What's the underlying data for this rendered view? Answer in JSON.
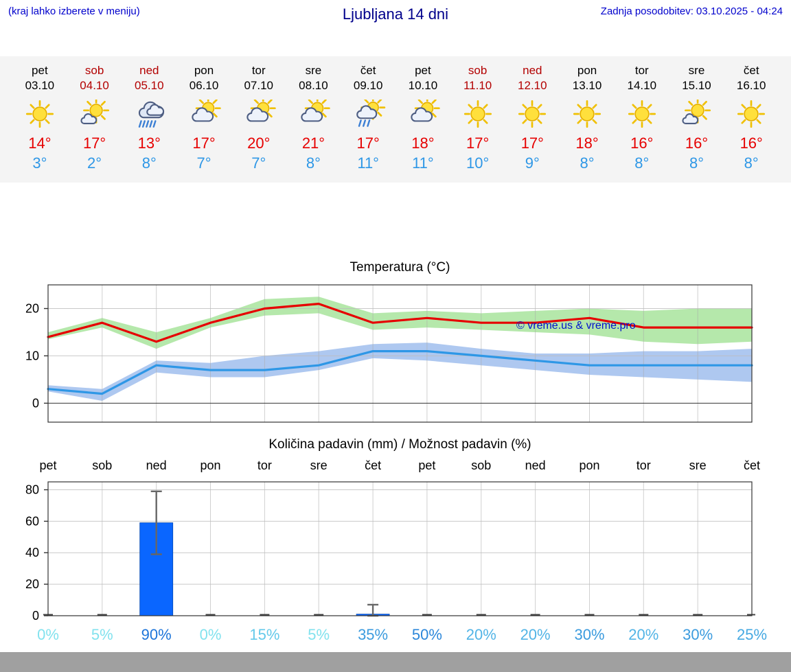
{
  "header": {
    "hint": "(kraj lahko izberete v meniju)",
    "title": "Ljubljana 14 dni",
    "updated": "Zadnja posodobitev: 03.10.2025 - 04:24"
  },
  "watermark": "© vreme.us & vreme.pro",
  "colors": {
    "header_blue": "#0000cc",
    "title_blue": "#00008b",
    "weekend_red": "#b30000",
    "high_red": "#e60000",
    "low_blue": "#2e97e6",
    "strip_bg": "#f4f4f4",
    "footer_gray": "#a0a0a0"
  },
  "forecast": {
    "days": [
      {
        "name": "pet",
        "date": "03.10",
        "weekend": false,
        "icon": "sunny",
        "high": "14°",
        "low": "3°"
      },
      {
        "name": "sob",
        "date": "04.10",
        "weekend": true,
        "icon": "mostly-sunny",
        "high": "17°",
        "low": "2°"
      },
      {
        "name": "ned",
        "date": "05.10",
        "weekend": true,
        "icon": "rain",
        "high": "13°",
        "low": "8°"
      },
      {
        "name": "pon",
        "date": "06.10",
        "weekend": false,
        "icon": "partly-cloudy",
        "high": "17°",
        "low": "7°"
      },
      {
        "name": "tor",
        "date": "07.10",
        "weekend": false,
        "icon": "partly-cloudy",
        "high": "20°",
        "low": "7°"
      },
      {
        "name": "sre",
        "date": "08.10",
        "weekend": false,
        "icon": "partly-cloudy",
        "high": "21°",
        "low": "8°"
      },
      {
        "name": "čet",
        "date": "09.10",
        "weekend": false,
        "icon": "showers",
        "high": "17°",
        "low": "11°"
      },
      {
        "name": "pet",
        "date": "10.10",
        "weekend": false,
        "icon": "partly-cloudy",
        "high": "18°",
        "low": "11°"
      },
      {
        "name": "sob",
        "date": "11.10",
        "weekend": true,
        "icon": "sunny",
        "high": "17°",
        "low": "10°"
      },
      {
        "name": "ned",
        "date": "12.10",
        "weekend": true,
        "icon": "sunny",
        "high": "17°",
        "low": "9°"
      },
      {
        "name": "pon",
        "date": "13.10",
        "weekend": false,
        "icon": "sunny",
        "high": "18°",
        "low": "8°"
      },
      {
        "name": "tor",
        "date": "14.10",
        "weekend": false,
        "icon": "sunny",
        "high": "16°",
        "low": "8°"
      },
      {
        "name": "sre",
        "date": "15.10",
        "weekend": false,
        "icon": "mostly-sunny",
        "high": "16°",
        "low": "8°"
      },
      {
        "name": "čet",
        "date": "16.10",
        "weekend": false,
        "icon": "sunny",
        "high": "16°",
        "low": "8°"
      }
    ]
  },
  "chart_data": [
    {
      "type": "line",
      "title": "Temperatura (°C)",
      "x_labels": [
        "03.10",
        "04.10",
        "05.10",
        "06.10",
        "07.10",
        "08.10",
        "09.10",
        "10.10",
        "11.10",
        "12.10",
        "13.10",
        "14.10",
        "15.10",
        "16.10"
      ],
      "ylim": [
        -4,
        25
      ],
      "yticks": [
        0,
        10,
        20
      ],
      "grid": true,
      "series": [
        {
          "name": "max-temperature",
          "color": "#e60000",
          "values": [
            14,
            17,
            13,
            17,
            20,
            21,
            17,
            18,
            17,
            17,
            18,
            16,
            16,
            16
          ]
        },
        {
          "name": "min-temperature",
          "color": "#2e97e6",
          "values": [
            3,
            2,
            8,
            7,
            7,
            8,
            11,
            11,
            10,
            9,
            8,
            8,
            8,
            8
          ]
        }
      ],
      "bands": [
        {
          "name": "max-range",
          "color": "#b5e8ab",
          "upper": [
            15,
            18,
            15,
            18,
            22,
            22.5,
            19,
            19.5,
            19,
            19.5,
            20,
            19.5,
            20,
            20
          ],
          "lower": [
            13.5,
            16,
            11.5,
            16,
            18.5,
            19,
            15.5,
            16,
            15.5,
            15,
            14.5,
            13,
            12.5,
            13
          ]
        },
        {
          "name": "min-range",
          "color": "#aec8f0",
          "upper": [
            3.8,
            3,
            9,
            8.5,
            10,
            11,
            12.5,
            12.8,
            11.5,
            10.5,
            10.5,
            11,
            11,
            11.5
          ],
          "lower": [
            2.5,
            0.5,
            6.5,
            5.5,
            5.5,
            7,
            9.5,
            9,
            8,
            7,
            6,
            5.5,
            5,
            4.5
          ]
        }
      ]
    },
    {
      "type": "bar",
      "title": "Količina padavin (mm) / Možnost padavin (%)",
      "categories": [
        "pet",
        "sob",
        "ned",
        "pon",
        "tor",
        "sre",
        "čet",
        "pet",
        "sob",
        "ned",
        "pon",
        "tor",
        "sre",
        "čet"
      ],
      "values": [
        0,
        0,
        59,
        0,
        0,
        0,
        1,
        0,
        0,
        0,
        0,
        0,
        0,
        0
      ],
      "error_low": [
        0,
        0,
        39,
        0,
        0,
        0,
        0,
        0,
        0,
        0,
        0,
        0,
        0,
        0
      ],
      "error_high": [
        0,
        0,
        79,
        0,
        0,
        0,
        7,
        0,
        0,
        0,
        0,
        0,
        0,
        0
      ],
      "bar_color": "#0a66ff",
      "ylim": [
        0,
        85
      ],
      "yticks": [
        0,
        20,
        40,
        60,
        80
      ],
      "probabilities": [
        {
          "label": "0%",
          "color": "#82e2ee"
        },
        {
          "label": "5%",
          "color": "#82e2ee"
        },
        {
          "label": "90%",
          "color": "#1c74d9"
        },
        {
          "label": "0%",
          "color": "#82e2ee"
        },
        {
          "label": "15%",
          "color": "#63c9ea"
        },
        {
          "label": "5%",
          "color": "#82e2ee"
        },
        {
          "label": "35%",
          "color": "#3b9bde"
        },
        {
          "label": "50%",
          "color": "#2c87da"
        },
        {
          "label": "20%",
          "color": "#52b4e6"
        },
        {
          "label": "20%",
          "color": "#52b4e6"
        },
        {
          "label": "30%",
          "color": "#3b9bde"
        },
        {
          "label": "20%",
          "color": "#52b4e6"
        },
        {
          "label": "30%",
          "color": "#3b9bde"
        },
        {
          "label": "25%",
          "color": "#46a9e2"
        }
      ]
    }
  ]
}
